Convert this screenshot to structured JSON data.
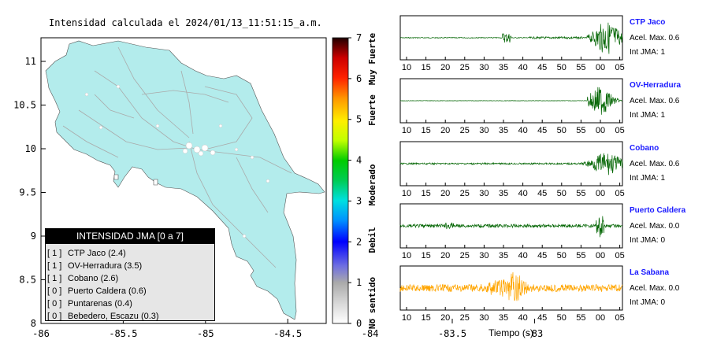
{
  "map": {
    "title": "Intensidad calculada el 2024/01/13_11:51:15_a.m.",
    "x_ticks": [
      "-86",
      "-85.5",
      "-85",
      "-84.5",
      "-84",
      "-83.5",
      "-83"
    ],
    "y_ticks": [
      "11",
      "10.5",
      "10",
      "9.5",
      "9",
      "8.5",
      "8"
    ],
    "land_color": "#b3ecec",
    "legend": {
      "title": "INTENSIDAD JMA [0 a 7]",
      "items": [
        {
          "level": "[ 1 ]",
          "name": "CTP Jaco (2.4)"
        },
        {
          "level": "[ 1 ]",
          "name": "OV-Herradura (3.5)"
        },
        {
          "level": "[ 1 ]",
          "name": "Cobano (2.6)"
        },
        {
          "level": "[ 0 ]",
          "name": "Puerto Caldera (0.6)"
        },
        {
          "level": "[ 0 ]",
          "name": "Puntarenas (0.4)"
        },
        {
          "level": "[ 0 ]",
          "name": "Bebedero, Escazu (0.3)"
        }
      ]
    }
  },
  "colorbar": {
    "ticks": [
      "0",
      "1",
      "2",
      "3",
      "4",
      "5",
      "6",
      "7"
    ],
    "labels": [
      "No sentido",
      "Debil",
      "Moderado",
      "Fuerte",
      "Muy Fuerte"
    ]
  },
  "chart_data": {
    "type": "line",
    "xlabel": "Tiempo (s)",
    "x_ticks": [
      "10",
      "15",
      "20",
      "25",
      "30",
      "35",
      "40",
      "45",
      "50",
      "55",
      "00",
      "05"
    ],
    "series": [
      {
        "name": "CTP Jaco",
        "color": "#006400",
        "acel_max": "Acel. Max. 0.6",
        "int_jma": "Int JMA: 1"
      },
      {
        "name": "OV-Herradura",
        "color": "#006400",
        "acel_max": "Acel. Max. 0.6",
        "int_jma": "Int JMA: 1"
      },
      {
        "name": "Cobano",
        "color": "#006400",
        "acel_max": "Acel. Max. 0.6",
        "int_jma": "Int JMA: 1"
      },
      {
        "name": "Puerto Caldera",
        "color": "#006400",
        "acel_max": "Acel. Max. 0.0",
        "int_jma": "Int JMA: 0"
      },
      {
        "name": "La Sabana",
        "color": "#ffa500",
        "acel_max": "Acel. Max. 0.0",
        "int_jma": "Int JMA: 0"
      }
    ]
  }
}
